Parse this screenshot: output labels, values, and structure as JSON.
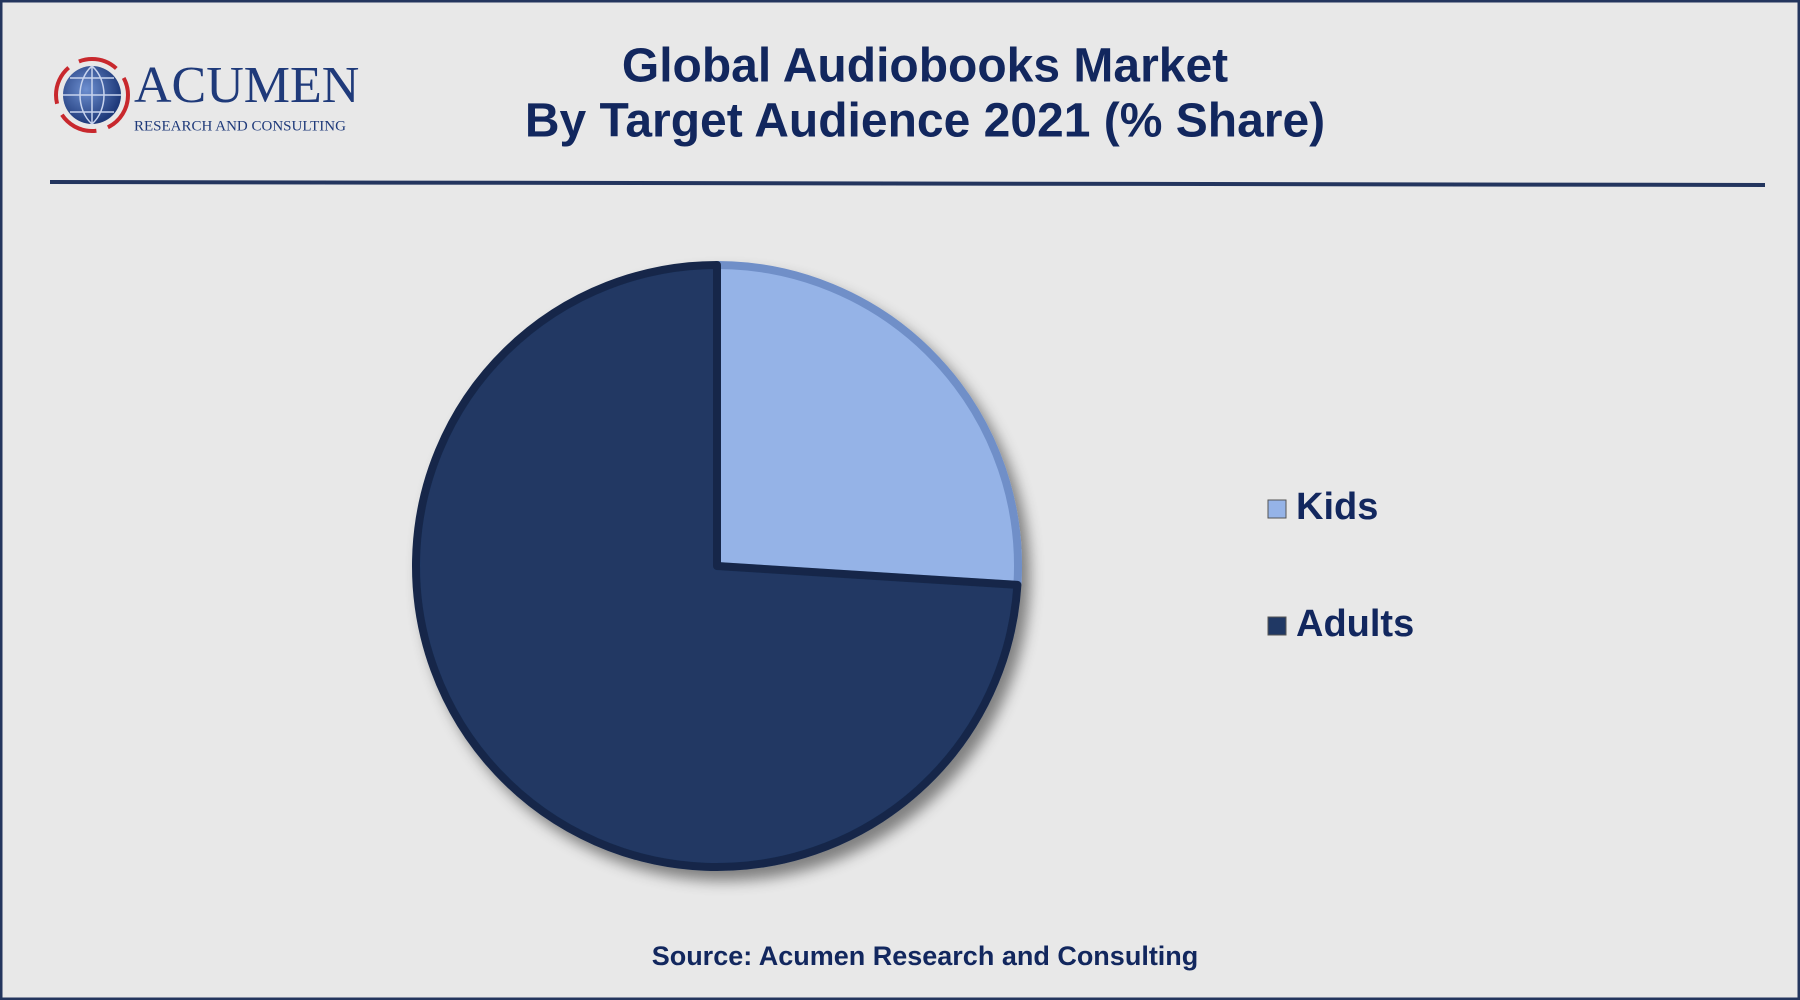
{
  "logo": {
    "name": "ACUMEN",
    "tagline": "RESEARCH AND CONSULTING"
  },
  "chart_data": {
    "type": "pie",
    "title": [
      "Global Audiobooks Market",
      "By Target Audience 2021 (% Share)"
    ],
    "categories": [
      "Kids",
      "Adults"
    ],
    "values": [
      26,
      74
    ],
    "colors": [
      "#95b3e7",
      "#203864"
    ],
    "legend": "right",
    "source": "Source: Acumen Research and Consulting"
  }
}
